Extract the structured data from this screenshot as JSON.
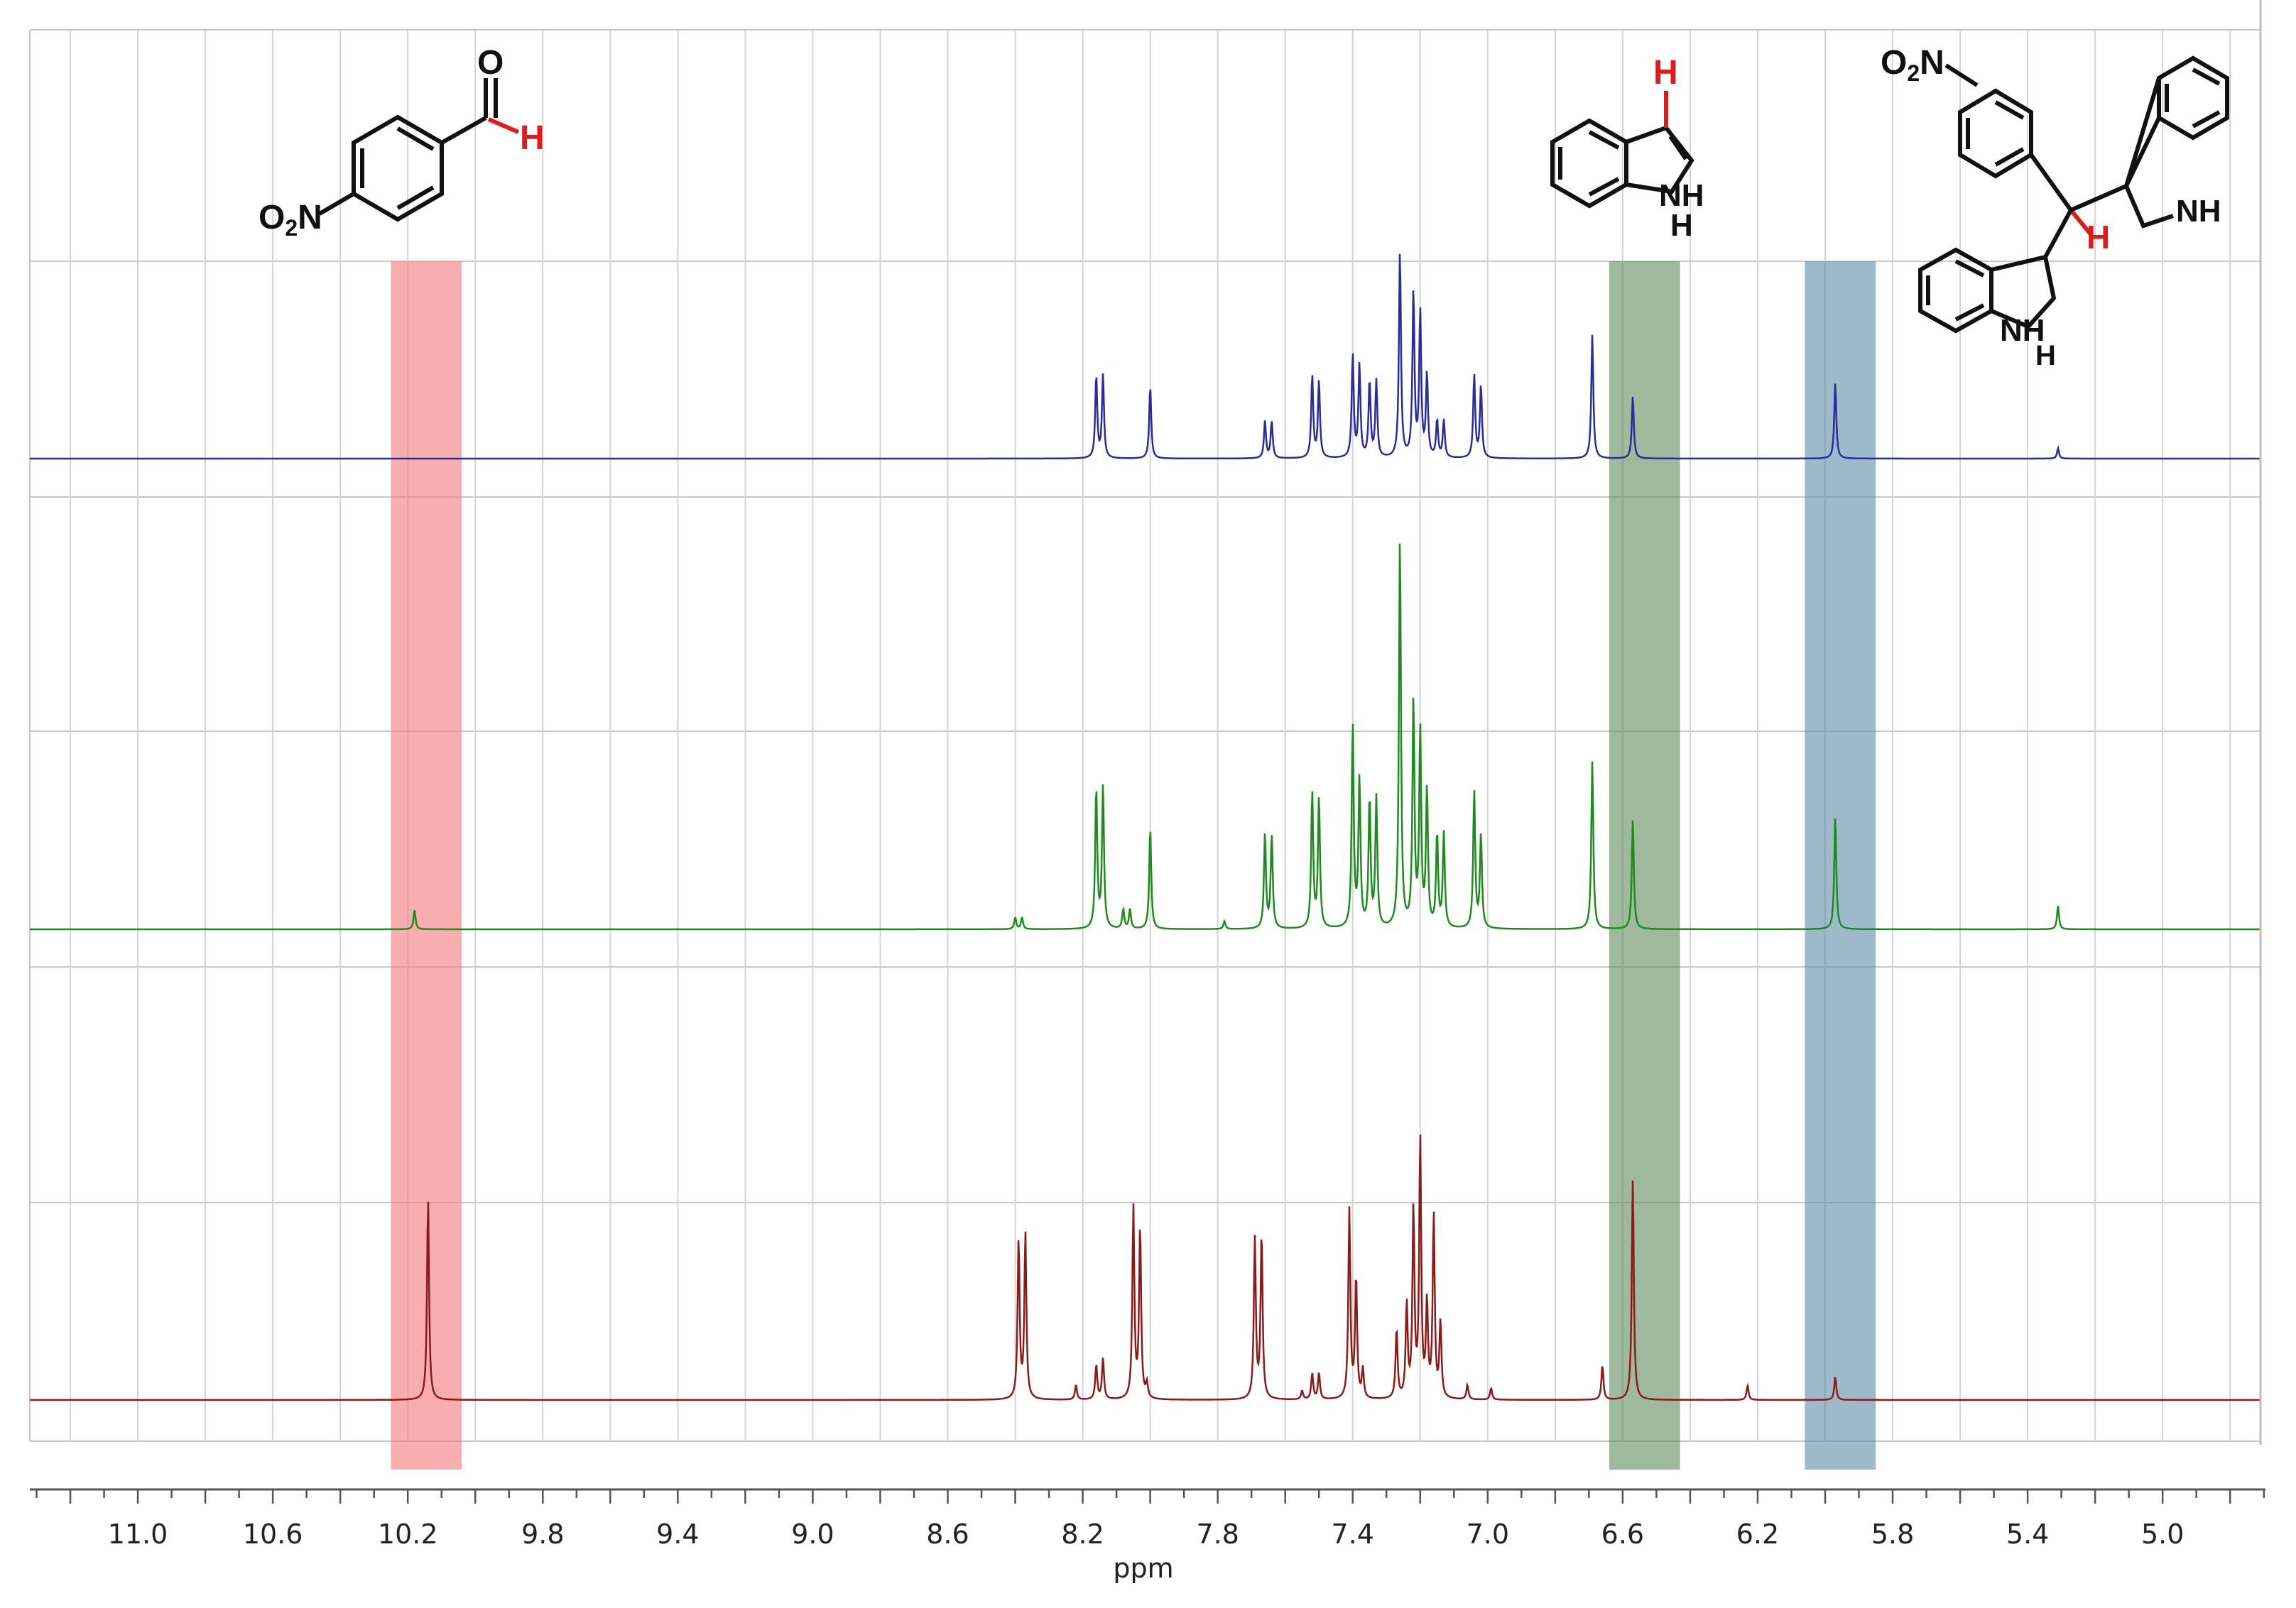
{
  "chart_data": {
    "type": "line",
    "xlabel": "ppm",
    "xlim": [
      11.32,
      4.71
    ],
    "xaxis_reversed": true,
    "grid": true,
    "ticks": [
      "11.0",
      "10.6",
      "10.2",
      "9.8",
      "9.4",
      "9.0",
      "8.6",
      "8.2",
      "7.8",
      "7.4",
      "7.0",
      "6.6",
      "6.2",
      "5.8",
      "5.4",
      "5.0"
    ],
    "tick_values": [
      11.0,
      10.6,
      10.2,
      9.8,
      9.4,
      9.0,
      8.6,
      8.2,
      7.8,
      7.4,
      7.0,
      6.6,
      6.2,
      5.8,
      5.4,
      5.0
    ],
    "highlight_bands": [
      {
        "x1": 10.25,
        "x2": 10.04,
        "color": "#f4787a",
        "label": "aldehyde CHO"
      },
      {
        "x1": 6.64,
        "x2": 6.43,
        "color": "#5e8a5a",
        "label": "indole C3-H"
      },
      {
        "x1": 6.06,
        "x2": 5.85,
        "color": "#5b8aa6",
        "label": "methine CH"
      }
    ],
    "series": [
      {
        "color": "#2b2b9a",
        "peaks": [
          [
            8.16,
            0.4
          ],
          [
            8.14,
            0.4
          ],
          [
            8.0,
            0.35
          ],
          [
            7.66,
            0.18
          ],
          [
            7.64,
            0.18
          ],
          [
            7.52,
            0.4
          ],
          [
            7.5,
            0.37
          ],
          [
            7.4,
            0.5
          ],
          [
            7.38,
            0.45
          ],
          [
            7.35,
            0.37
          ],
          [
            7.33,
            0.37
          ],
          [
            7.26,
            1.0
          ],
          [
            7.22,
            0.8
          ],
          [
            7.2,
            0.7
          ],
          [
            7.18,
            0.4
          ],
          [
            7.15,
            0.18
          ],
          [
            7.13,
            0.18
          ],
          [
            7.04,
            0.4
          ],
          [
            7.02,
            0.35
          ],
          [
            6.69,
            0.6
          ],
          [
            6.57,
            0.3
          ],
          [
            5.97,
            0.37
          ],
          [
            5.31,
            0.05
          ]
        ]
      },
      {
        "color": "#1f8a1f",
        "peaks": [
          [
            10.18,
            0.05
          ],
          [
            8.4,
            0.03
          ],
          [
            8.38,
            0.03
          ],
          [
            8.16,
            0.36
          ],
          [
            8.14,
            0.36
          ],
          [
            8.08,
            0.05
          ],
          [
            8.06,
            0.05
          ],
          [
            8.0,
            0.26
          ],
          [
            7.78,
            0.02
          ],
          [
            7.66,
            0.24
          ],
          [
            7.64,
            0.24
          ],
          [
            7.52,
            0.35
          ],
          [
            7.5,
            0.33
          ],
          [
            7.4,
            0.52
          ],
          [
            7.38,
            0.38
          ],
          [
            7.35,
            0.33
          ],
          [
            7.33,
            0.33
          ],
          [
            7.26,
            1.0
          ],
          [
            7.22,
            0.58
          ],
          [
            7.2,
            0.5
          ],
          [
            7.18,
            0.35
          ],
          [
            7.15,
            0.24
          ],
          [
            7.13,
            0.24
          ],
          [
            7.04,
            0.35
          ],
          [
            7.02,
            0.24
          ],
          [
            6.69,
            0.43
          ],
          [
            6.57,
            0.28
          ],
          [
            5.97,
            0.29
          ],
          [
            5.31,
            0.06
          ]
        ]
      },
      {
        "color": "#8b1a1a",
        "peaks": [
          [
            10.14,
            0.7
          ],
          [
            8.39,
            0.55
          ],
          [
            8.37,
            0.57
          ],
          [
            8.22,
            0.05
          ],
          [
            8.16,
            0.12
          ],
          [
            8.14,
            0.14
          ],
          [
            8.05,
            0.66
          ],
          [
            8.03,
            0.59
          ],
          [
            8.01,
            0.05
          ],
          [
            7.69,
            0.55
          ],
          [
            7.67,
            0.57
          ],
          [
            7.55,
            0.03
          ],
          [
            7.52,
            0.09
          ],
          [
            7.5,
            0.09
          ],
          [
            7.41,
            0.65
          ],
          [
            7.39,
            0.42
          ],
          [
            7.37,
            0.1
          ],
          [
            7.27,
            0.24
          ],
          [
            7.24,
            0.32
          ],
          [
            7.22,
            0.65
          ],
          [
            7.2,
            0.89
          ],
          [
            7.18,
            0.32
          ],
          [
            7.16,
            0.63
          ],
          [
            7.14,
            0.26
          ],
          [
            7.06,
            0.05
          ],
          [
            6.99,
            0.04
          ],
          [
            6.66,
            0.12
          ],
          [
            6.57,
            0.76
          ],
          [
            6.23,
            0.05
          ],
          [
            5.97,
            0.08
          ]
        ]
      }
    ]
  }
}
